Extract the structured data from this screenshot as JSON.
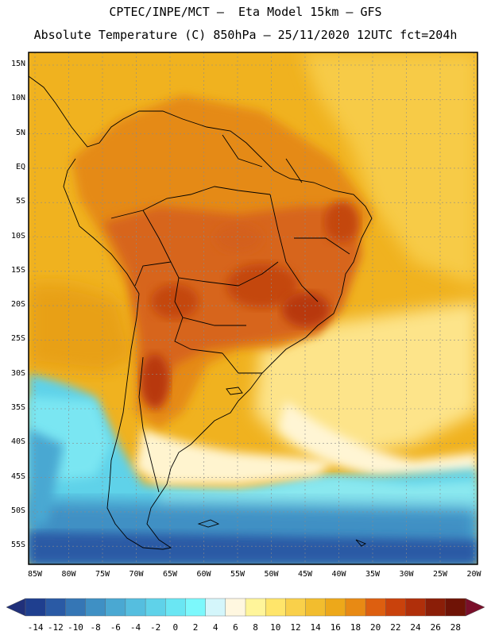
{
  "header": {
    "line1": "CPTEC/INPE/MCT –  Eta Model 15km – GFS",
    "line2": "Absolute Temperature (C) 850hPa – 25/11/2020 12UTC fct=204h"
  },
  "map": {
    "lat_labels": [
      "15N",
      "10N",
      "5N",
      "EQ",
      "5S",
      "10S",
      "15S",
      "20S",
      "25S",
      "30S",
      "35S",
      "40S",
      "45S",
      "50S",
      "55S"
    ],
    "lon_labels": [
      "85W",
      "80W",
      "75W",
      "70W",
      "65W",
      "60W",
      "55W",
      "50W",
      "45W",
      "40W",
      "35W",
      "30W",
      "25W",
      "20W"
    ],
    "grid": "dashed"
  },
  "colorbar": {
    "labels": [
      "-14",
      "-12",
      "-10",
      "-8",
      "-6",
      "-4",
      "-2",
      "0",
      "2",
      "4",
      "6",
      "8",
      "10",
      "12",
      "14",
      "16",
      "18",
      "20",
      "22",
      "24",
      "26",
      "28"
    ],
    "colors": [
      "#1f3f8f",
      "#2a5aa5",
      "#3576b5",
      "#3f90c4",
      "#4aa8d2",
      "#55bedf",
      "#5fd2e9",
      "#6ae6f3",
      "#7cf8fc",
      "#d4f6fb",
      "#fff7e0",
      "#fff59a",
      "#ffe56a",
      "#f9d04a",
      "#f2bd2e",
      "#eda81a",
      "#e88a14",
      "#dd5f10",
      "#c9420c",
      "#b02f0a",
      "#8b1e08",
      "#6f1306"
    ],
    "under_color": "#20307a",
    "over_color": "#7a0f2a"
  }
}
